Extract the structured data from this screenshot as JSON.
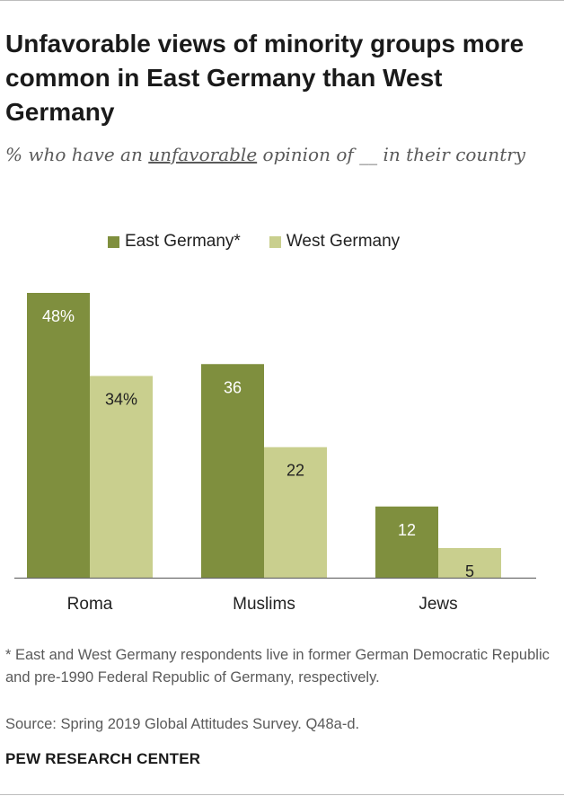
{
  "title": "Unfavorable views of minority groups more common in East Germany than West Germany",
  "subtitle": {
    "before": "% who have an ",
    "emphasis": "unfavorable",
    "after": " opinion of __ in their country"
  },
  "footnote": "* East and West Germany respondents live in former German Democratic Republic and pre-1990 Federal Republic of Germany, respectively.",
  "source": "Source: Spring 2019 Global Attitudes Survey. Q48a-d.",
  "brand": "PEW RESEARCH CENTER",
  "colors": {
    "east": "#7f8f3e",
    "west": "#c9cf8e",
    "axis": "#6b6b6b",
    "label_dark": "#222222",
    "label_light": "#ffffff"
  },
  "chart_data": {
    "type": "bar",
    "categories": [
      "Roma",
      "Muslims",
      "Jews"
    ],
    "series": [
      {
        "name": "East Germany*",
        "values": [
          48,
          36,
          12
        ],
        "labels": [
          "48%",
          "36",
          "12"
        ]
      },
      {
        "name": "West Germany",
        "values": [
          34,
          22,
          5
        ],
        "labels": [
          "34%",
          "22",
          "5"
        ]
      }
    ],
    "ylim": [
      0,
      48
    ],
    "grid": false,
    "legend": "top"
  }
}
